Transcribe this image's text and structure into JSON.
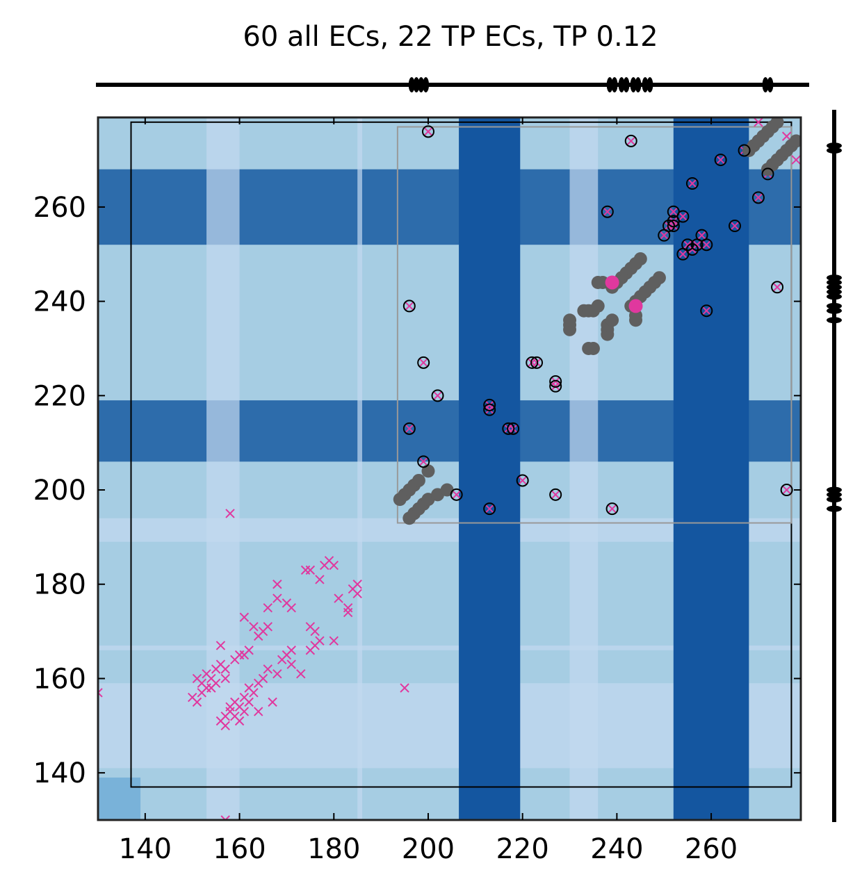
{
  "chart_data": {
    "type": "scatter",
    "title": "60 all ECs, 22 TP ECs, TP 0.12",
    "xlabel": "",
    "ylabel": "",
    "xlim": [
      130,
      279
    ],
    "ylim": [
      130,
      279
    ],
    "xticks": [
      140,
      160,
      180,
      200,
      220,
      240,
      260
    ],
    "yticks": [
      140,
      160,
      180,
      200,
      220,
      240,
      260
    ],
    "grid": false,
    "legend": "none",
    "colors": {
      "background": "#a6cde3",
      "light_band": "#c3d9ef",
      "mid_band": "#8cb8d8",
      "medium_blue": "#2d6cab",
      "dark_blue": "#1456a0",
      "corner_blue": "#6eabd6",
      "cross": "#e0389e",
      "predicted_contact": "#5f5f5f",
      "true_positive": "#e0389e",
      "frame": "#222222",
      "outer_box": "#000000",
      "inner_box": "#999999"
    },
    "background_bands": {
      "row_bands": [
        {
          "from": 252,
          "to": 268,
          "color": "medium_blue"
        },
        {
          "from": 206,
          "to": 219,
          "color": "medium_blue"
        },
        {
          "from": 189,
          "to": 194,
          "color": "light_band"
        },
        {
          "from": 166,
          "to": 167,
          "color": "light_band"
        },
        {
          "from": 141,
          "to": 159,
          "color": "light_band"
        }
      ],
      "col_bands": [
        {
          "from": 206.5,
          "to": 219.5,
          "color": "dark_blue"
        },
        {
          "from": 252,
          "to": 268,
          "color": "dark_blue"
        },
        {
          "from": 153,
          "to": 160,
          "color": "light_band"
        },
        {
          "from": 185,
          "to": 186,
          "color": "light_band"
        },
        {
          "from": 230,
          "to": 236,
          "color": "light_band"
        }
      ]
    },
    "outer_box": {
      "x": [
        137,
        277
      ],
      "y": [
        137,
        278
      ]
    },
    "inner_box": {
      "x": [
        193.5,
        277
      ],
      "y": [
        193,
        277
      ]
    },
    "crosses": [
      [
        150,
        156
      ],
      [
        151,
        155
      ],
      [
        151,
        160
      ],
      [
        152,
        157
      ],
      [
        152,
        159
      ],
      [
        153,
        158
      ],
      [
        153,
        161
      ],
      [
        154,
        158
      ],
      [
        154,
        160
      ],
      [
        155,
        159
      ],
      [
        155,
        162
      ],
      [
        156,
        151
      ],
      [
        156,
        163
      ],
      [
        156,
        167
      ],
      [
        157,
        150
      ],
      [
        157,
        152
      ],
      [
        157,
        160
      ],
      [
        157,
        162
      ],
      [
        158,
        153
      ],
      [
        158,
        154
      ],
      [
        158,
        195
      ],
      [
        159,
        152
      ],
      [
        159,
        155
      ],
      [
        159,
        164
      ],
      [
        160,
        151
      ],
      [
        160,
        154
      ],
      [
        160,
        165
      ],
      [
        161,
        153
      ],
      [
        161,
        156
      ],
      [
        161,
        165
      ],
      [
        161,
        173
      ],
      [
        162,
        155
      ],
      [
        162,
        158
      ],
      [
        162,
        166
      ],
      [
        163,
        157
      ],
      [
        163,
        171
      ],
      [
        164,
        153
      ],
      [
        164,
        159
      ],
      [
        164,
        169
      ],
      [
        165,
        160
      ],
      [
        165,
        170
      ],
      [
        166,
        162
      ],
      [
        166,
        171
      ],
      [
        166,
        175
      ],
      [
        167,
        155
      ],
      [
        168,
        161
      ],
      [
        168,
        177
      ],
      [
        168,
        180
      ],
      [
        169,
        164
      ],
      [
        170,
        165
      ],
      [
        170,
        176
      ],
      [
        171,
        163
      ],
      [
        171,
        166
      ],
      [
        171,
        175
      ],
      [
        173,
        161
      ],
      [
        174,
        183
      ],
      [
        175,
        166
      ],
      [
        175,
        171
      ],
      [
        175,
        183
      ],
      [
        176,
        167
      ],
      [
        176,
        170
      ],
      [
        177,
        168
      ],
      [
        177,
        181
      ],
      [
        178,
        184
      ],
      [
        179,
        185
      ],
      [
        180,
        168
      ],
      [
        180,
        184
      ],
      [
        181,
        177
      ],
      [
        183,
        174
      ],
      [
        183,
        175
      ],
      [
        184,
        179
      ],
      [
        185,
        178
      ],
      [
        185,
        180
      ],
      [
        195,
        158
      ],
      [
        130,
        157
      ],
      [
        157,
        130
      ],
      [
        270,
        278
      ],
      [
        276,
        275
      ],
      [
        278,
        270
      ],
      [
        200,
        276
      ],
      [
        196,
        239
      ],
      [
        199,
        227
      ],
      [
        202,
        220
      ],
      [
        196,
        213
      ],
      [
        199,
        206
      ],
      [
        206,
        199
      ],
      [
        213,
        196
      ],
      [
        213,
        217
      ],
      [
        213,
        218
      ],
      [
        217,
        213
      ],
      [
        218,
        213
      ],
      [
        220,
        202
      ],
      [
        222,
        227
      ],
      [
        223,
        227
      ],
      [
        227,
        199
      ],
      [
        227,
        222
      ],
      [
        227,
        223
      ],
      [
        238,
        259
      ],
      [
        239,
        196
      ],
      [
        243,
        274
      ],
      [
        250,
        254
      ],
      [
        251,
        256
      ],
      [
        252,
        256
      ],
      [
        252,
        257
      ],
      [
        252,
        259
      ],
      [
        254,
        250
      ],
      [
        254,
        258
      ],
      [
        255,
        252
      ],
      [
        256,
        251
      ],
      [
        256,
        265
      ],
      [
        257,
        252
      ],
      [
        258,
        254
      ],
      [
        259,
        238
      ],
      [
        259,
        252
      ],
      [
        262,
        270
      ],
      [
        265,
        256
      ],
      [
        267,
        272
      ],
      [
        270,
        262
      ],
      [
        272,
        267
      ],
      [
        274,
        243
      ],
      [
        276,
        200
      ]
    ],
    "circles": [
      [
        200,
        276
      ],
      [
        196,
        239
      ],
      [
        199,
        227
      ],
      [
        202,
        220
      ],
      [
        196,
        213
      ],
      [
        199,
        206
      ],
      [
        206,
        199
      ],
      [
        213,
        196
      ],
      [
        213,
        217
      ],
      [
        213,
        218
      ],
      [
        217,
        213
      ],
      [
        218,
        213
      ],
      [
        220,
        202
      ],
      [
        222,
        227
      ],
      [
        223,
        227
      ],
      [
        227,
        199
      ],
      [
        227,
        222
      ],
      [
        227,
        223
      ],
      [
        238,
        259
      ],
      [
        239,
        196
      ],
      [
        243,
        274
      ],
      [
        250,
        254
      ],
      [
        251,
        256
      ],
      [
        252,
        256
      ],
      [
        252,
        257
      ],
      [
        252,
        259
      ],
      [
        254,
        250
      ],
      [
        254,
        258
      ],
      [
        255,
        252
      ],
      [
        256,
        251
      ],
      [
        256,
        265
      ],
      [
        257,
        252
      ],
      [
        258,
        254
      ],
      [
        259,
        238
      ],
      [
        259,
        252
      ],
      [
        262,
        270
      ],
      [
        265,
        256
      ],
      [
        267,
        272
      ],
      [
        270,
        262
      ],
      [
        272,
        267
      ],
      [
        274,
        243
      ],
      [
        276,
        200
      ]
    ],
    "predicted_contacts": [
      [
        194,
        198
      ],
      [
        195,
        199
      ],
      [
        196,
        200
      ],
      [
        197,
        201
      ],
      [
        198,
        202
      ],
      [
        200,
        204
      ],
      [
        196,
        194
      ],
      [
        197,
        195
      ],
      [
        198,
        196
      ],
      [
        199,
        197
      ],
      [
        200,
        198
      ],
      [
        202,
        199
      ],
      [
        204,
        200
      ],
      [
        230,
        234
      ],
      [
        230,
        235
      ],
      [
        230,
        236
      ],
      [
        234,
        230
      ],
      [
        235,
        230
      ],
      [
        233,
        238
      ],
      [
        234,
        238
      ],
      [
        235,
        238
      ],
      [
        236,
        239
      ],
      [
        236,
        244
      ],
      [
        237,
        244
      ],
      [
        238,
        233
      ],
      [
        238,
        234
      ],
      [
        238,
        235
      ],
      [
        239,
        236
      ],
      [
        239,
        243
      ],
      [
        240,
        244
      ],
      [
        241,
        245
      ],
      [
        242,
        246
      ],
      [
        243,
        247
      ],
      [
        244,
        248
      ],
      [
        245,
        249
      ],
      [
        243,
        239
      ],
      [
        244,
        236
      ],
      [
        244,
        237
      ],
      [
        244,
        240
      ],
      [
        245,
        241
      ],
      [
        246,
        242
      ],
      [
        247,
        243
      ],
      [
        248,
        244
      ],
      [
        249,
        245
      ],
      [
        268,
        272
      ],
      [
        269,
        273
      ],
      [
        270,
        274
      ],
      [
        271,
        275
      ],
      [
        272,
        276
      ],
      [
        273,
        277
      ],
      [
        274,
        278
      ],
      [
        272,
        268
      ],
      [
        273,
        269
      ],
      [
        274,
        270
      ],
      [
        275,
        271
      ],
      [
        276,
        272
      ],
      [
        277,
        273
      ],
      [
        278,
        274
      ]
    ],
    "true_positives": [
      [
        239,
        244
      ],
      [
        244,
        239
      ]
    ],
    "top_track_marks": [
      196.5,
      197.5,
      198.5,
      199.5,
      238.5,
      239.5,
      241,
      242,
      243.5,
      244.5,
      246,
      247,
      271.5,
      272.5
    ],
    "right_track_marks": [
      273,
      272,
      245,
      244,
      243,
      242,
      241,
      239,
      238,
      236,
      200,
      199,
      198,
      196
    ]
  }
}
